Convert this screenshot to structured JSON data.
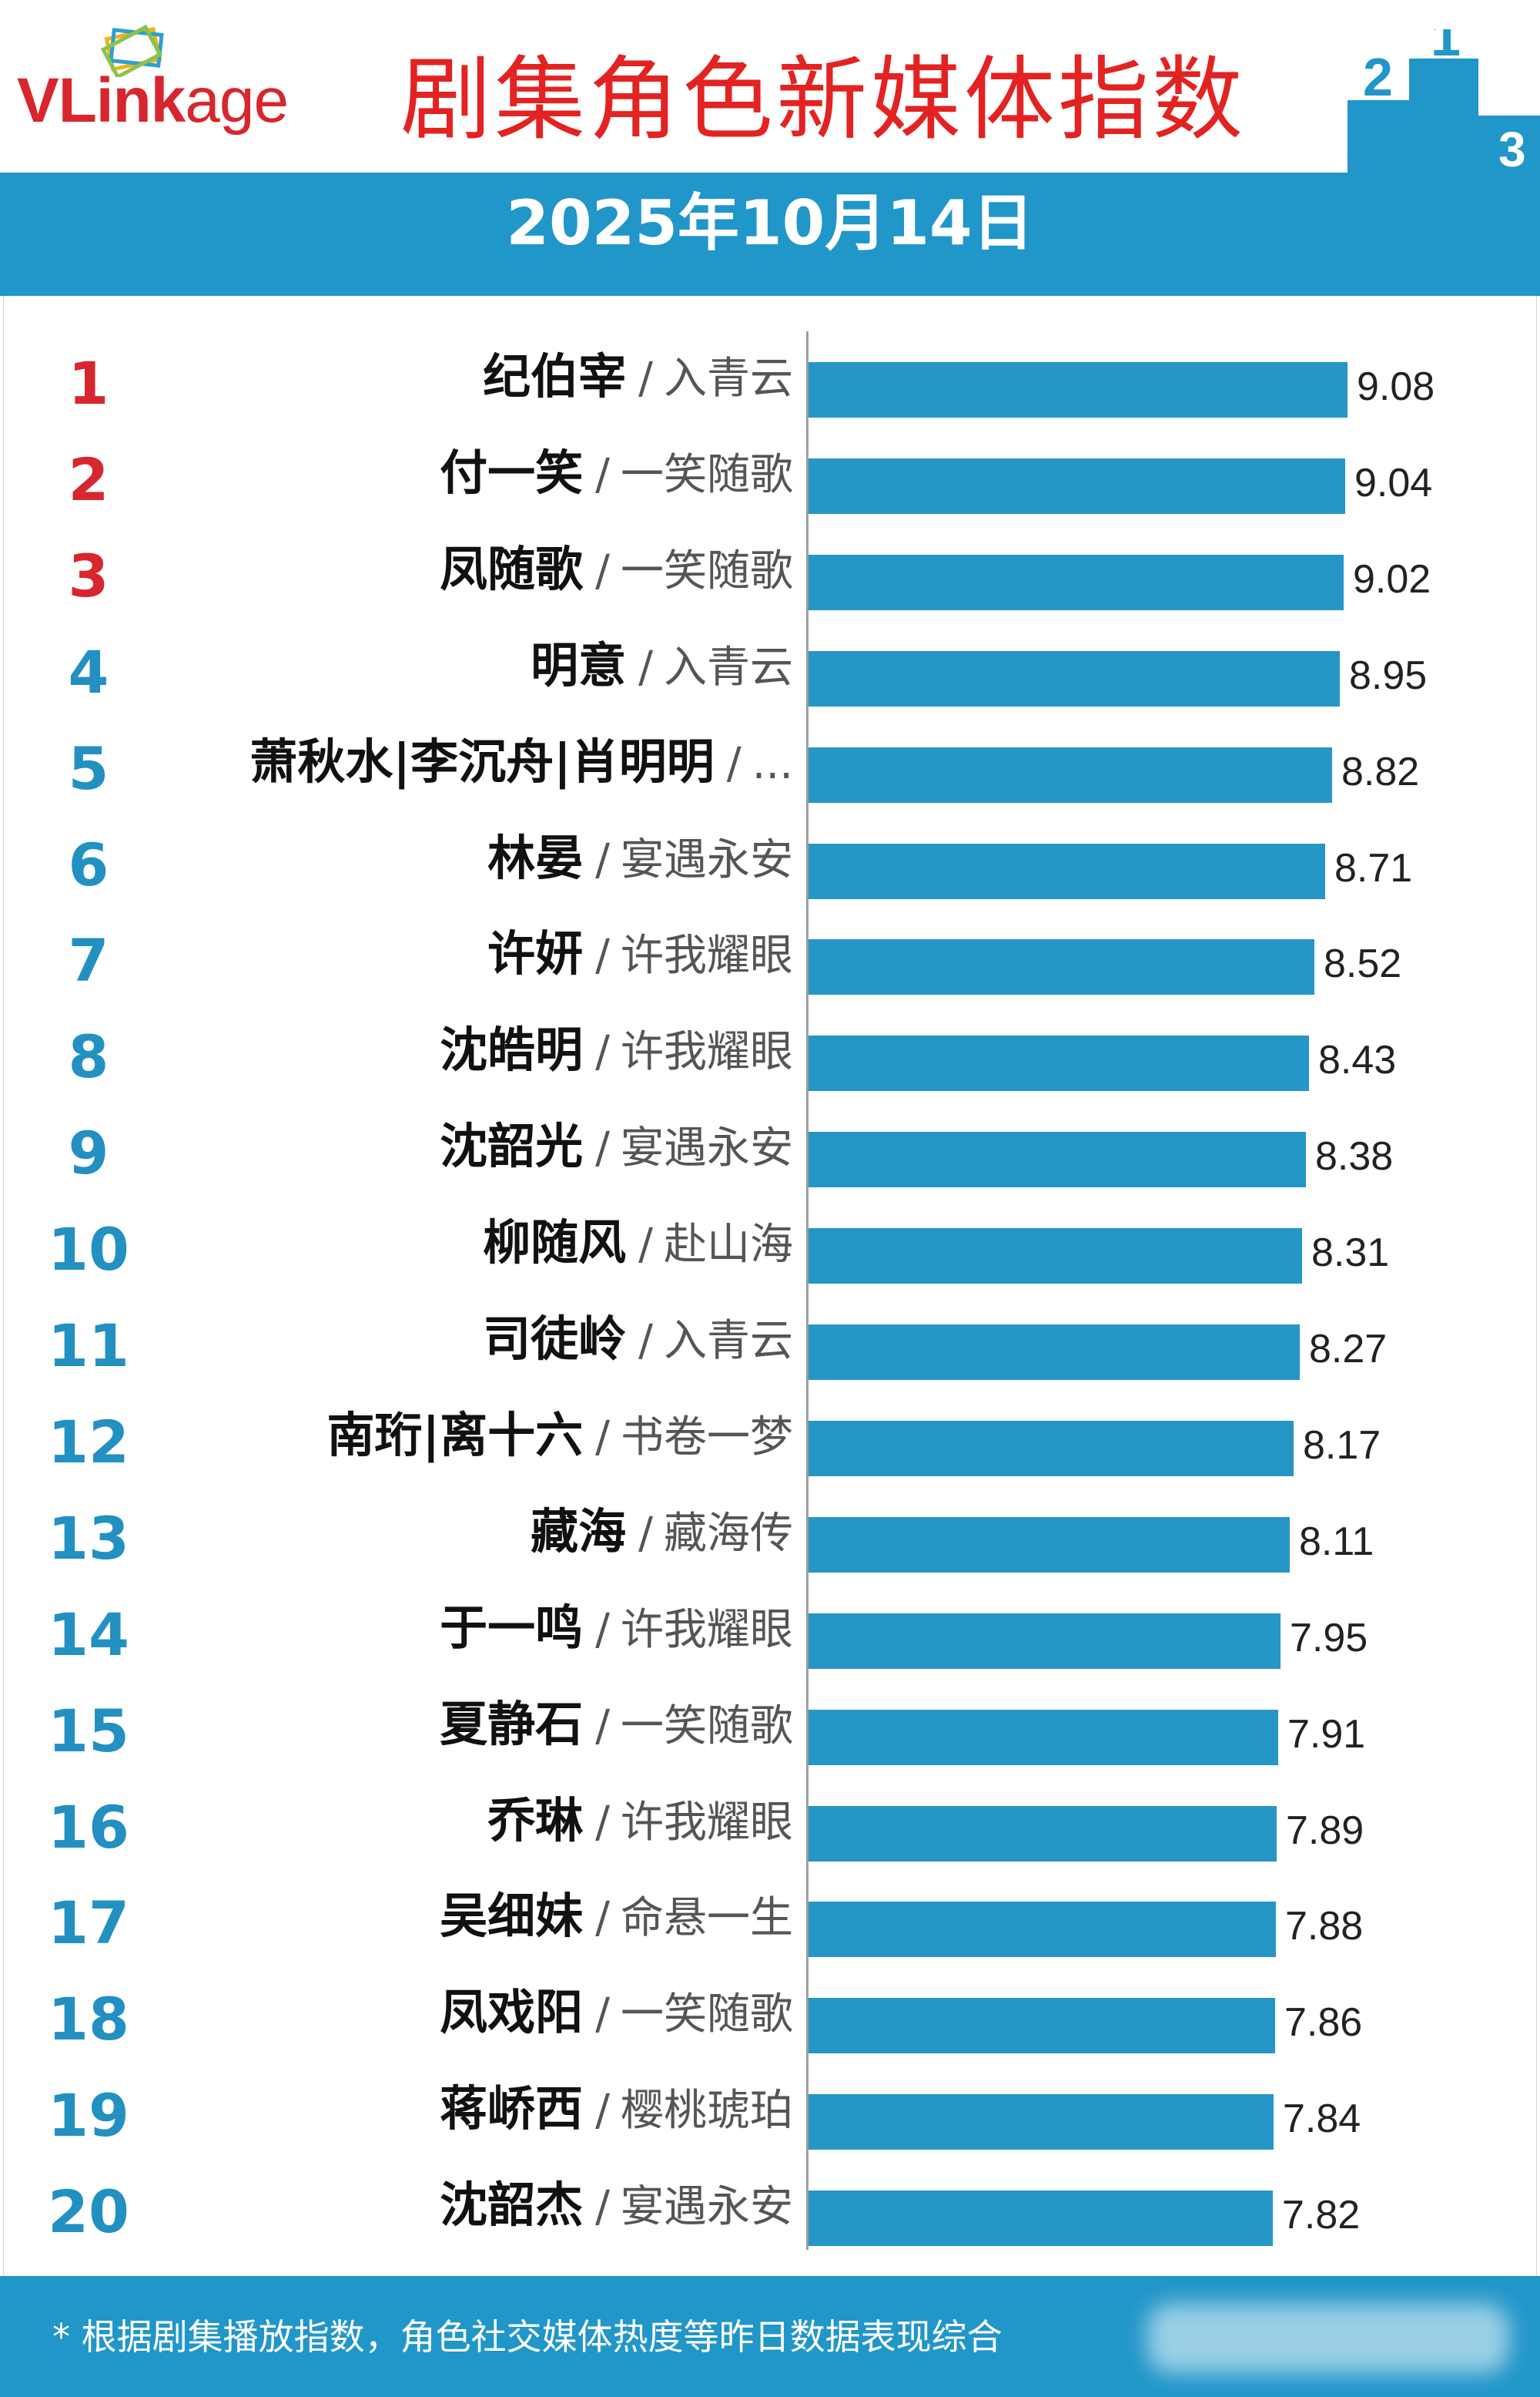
{
  "header": {
    "logo_text_bold": "VLink",
    "logo_text_regular": "age",
    "title": "剧集角色新媒体指数",
    "date": "2025年10月14日",
    "podium_numbers": [
      "2",
      "1",
      "3"
    ]
  },
  "colors": {
    "accent": "#2196c8",
    "bar": "#2596c6",
    "title": "#e32222",
    "top_rank": "#d7262e",
    "rank": "#2390c2"
  },
  "chart_data": {
    "type": "bar",
    "orientation": "horizontal",
    "xlim": [
      0,
      9.08
    ],
    "categories": [
      "纪伯宰 / 入青云",
      "付一笑 / 一笑随歌",
      "凤随歌 / 一笑随歌",
      "明意 / 入青云",
      "萧秋水|李沉舟|肖明明 / ...",
      "林晏 / 宴遇永安",
      "许妍 / 许我耀眼",
      "沈皓明 / 许我耀眼",
      "沈韶光 / 宴遇永安",
      "柳随风 / 赴山海",
      "司徒岭 / 入青云",
      "南珩|离十六 / 书卷一梦",
      "藏海 / 藏海传",
      "于一鸣 / 许我耀眼",
      "夏静石 / 一笑随歌",
      "乔琳 / 许我耀眼",
      "吴细妹 / 命悬一生",
      "凤戏阳 / 一笑随歌",
      "蒋峤西 / 樱桃琥珀",
      "沈韶杰 / 宴遇永安"
    ],
    "values": [
      9.08,
      9.04,
      9.02,
      8.95,
      8.82,
      8.71,
      8.52,
      8.43,
      8.38,
      8.31,
      8.27,
      8.17,
      8.11,
      7.95,
      7.91,
      7.89,
      7.88,
      7.86,
      7.84,
      7.82
    ],
    "rows": [
      {
        "rank": "1",
        "name": "纪伯宰",
        "drama": "入青云",
        "value": 9.08,
        "label": "9.08"
      },
      {
        "rank": "2",
        "name": "付一笑",
        "drama": "一笑随歌",
        "value": 9.04,
        "label": "9.04"
      },
      {
        "rank": "3",
        "name": "凤随歌",
        "drama": "一笑随歌",
        "value": 9.02,
        "label": "9.02"
      },
      {
        "rank": "4",
        "name": "明意",
        "drama": "入青云",
        "value": 8.95,
        "label": "8.95"
      },
      {
        "rank": "5",
        "name": "萧秋水|李沉舟|肖明明",
        "drama": "...",
        "value": 8.82,
        "label": "8.82"
      },
      {
        "rank": "6",
        "name": "林晏",
        "drama": "宴遇永安",
        "value": 8.71,
        "label": "8.71"
      },
      {
        "rank": "7",
        "name": "许妍",
        "drama": "许我耀眼",
        "value": 8.52,
        "label": "8.52"
      },
      {
        "rank": "8",
        "name": "沈皓明",
        "drama": "许我耀眼",
        "value": 8.43,
        "label": "8.43"
      },
      {
        "rank": "9",
        "name": "沈韶光",
        "drama": "宴遇永安",
        "value": 8.38,
        "label": "8.38"
      },
      {
        "rank": "10",
        "name": "柳随风",
        "drama": "赴山海",
        "value": 8.31,
        "label": "8.31"
      },
      {
        "rank": "11",
        "name": "司徒岭",
        "drama": "入青云",
        "value": 8.27,
        "label": "8.27"
      },
      {
        "rank": "12",
        "name": "南珩|离十六",
        "drama": "书卷一梦",
        "value": 8.17,
        "label": "8.17"
      },
      {
        "rank": "13",
        "name": "藏海",
        "drama": "藏海传",
        "value": 8.11,
        "label": "8.11"
      },
      {
        "rank": "14",
        "name": "于一鸣",
        "drama": "许我耀眼",
        "value": 7.95,
        "label": "7.95"
      },
      {
        "rank": "15",
        "name": "夏静石",
        "drama": "一笑随歌",
        "value": 7.91,
        "label": "7.91"
      },
      {
        "rank": "16",
        "name": "乔琳",
        "drama": "许我耀眼",
        "value": 7.89,
        "label": "7.89"
      },
      {
        "rank": "17",
        "name": "吴细妹",
        "drama": "命悬一生",
        "value": 7.88,
        "label": "7.88"
      },
      {
        "rank": "18",
        "name": "凤戏阳",
        "drama": "一笑随歌",
        "value": 7.86,
        "label": "7.86"
      },
      {
        "rank": "19",
        "name": "蒋峤西",
        "drama": "樱桃琥珀",
        "value": 7.84,
        "label": "7.84"
      },
      {
        "rank": "20",
        "name": "沈韶杰",
        "drama": "宴遇永安",
        "value": 7.82,
        "label": "7.82"
      }
    ],
    "separator": "/"
  },
  "footer": {
    "note": "* 根据剧集播放指数，角色社交媒体热度等昨日数据表现综合"
  }
}
